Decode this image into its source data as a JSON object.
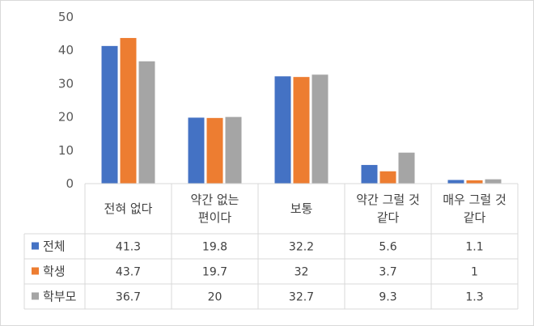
{
  "chart_data": {
    "type": "bar",
    "categories": [
      [
        "전혀 없다"
      ],
      [
        "약간 없는",
        "편이다"
      ],
      [
        "보통"
      ],
      [
        "약간 그럴 것",
        "같다"
      ],
      [
        "매우 그럴 것",
        "같다"
      ]
    ],
    "series": [
      {
        "name": "전체",
        "values": [
          41.3,
          19.8,
          32.2,
          5.6,
          1.1
        ],
        "labels": [
          "41.3",
          "19.8",
          "32.2",
          "5.6",
          "1.1"
        ],
        "color": "#4472c4"
      },
      {
        "name": "학생",
        "values": [
          43.7,
          19.7,
          32,
          3.7,
          1
        ],
        "labels": [
          "43.7",
          "19.7",
          "32",
          "3.7",
          "1"
        ],
        "color": "#ed7d31"
      },
      {
        "name": "학부모",
        "values": [
          36.7,
          20,
          32.7,
          9.3,
          1.3
        ],
        "labels": [
          "36.7",
          "20",
          "32.7",
          "9.3",
          "1.3"
        ],
        "color": "#a5a5a5"
      }
    ],
    "yticks": [
      "0",
      "10",
      "20",
      "30",
      "40",
      "50"
    ],
    "ylim": [
      0,
      50
    ],
    "grid": false,
    "legend": "data-table"
  }
}
